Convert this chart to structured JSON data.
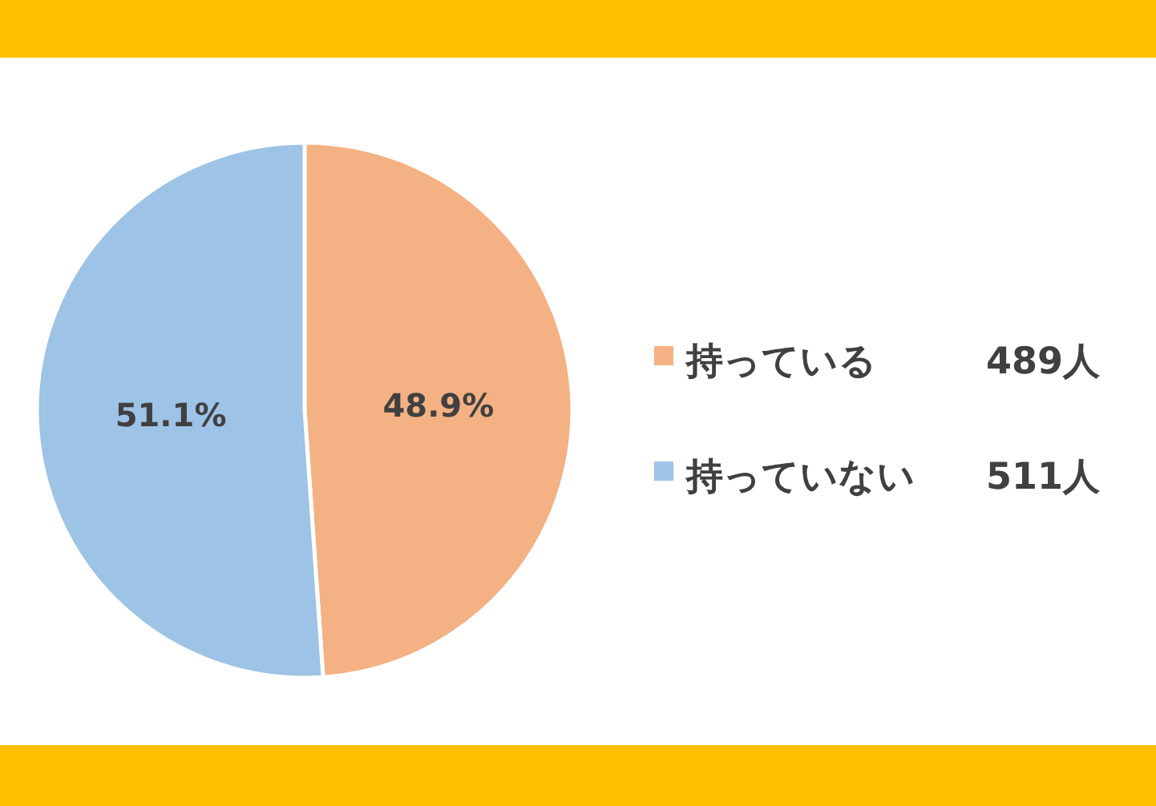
{
  "chart_data": {
    "type": "pie",
    "categories": [
      "持っている",
      "持っていない"
    ],
    "values": [
      48.9,
      51.1
    ],
    "colors": [
      "#f4b183",
      "#9dc3e6"
    ],
    "value_labels": [
      "48.9%",
      "51.1%"
    ],
    "legend": "right",
    "annotations": [
      "489人",
      "511人"
    ]
  }
}
